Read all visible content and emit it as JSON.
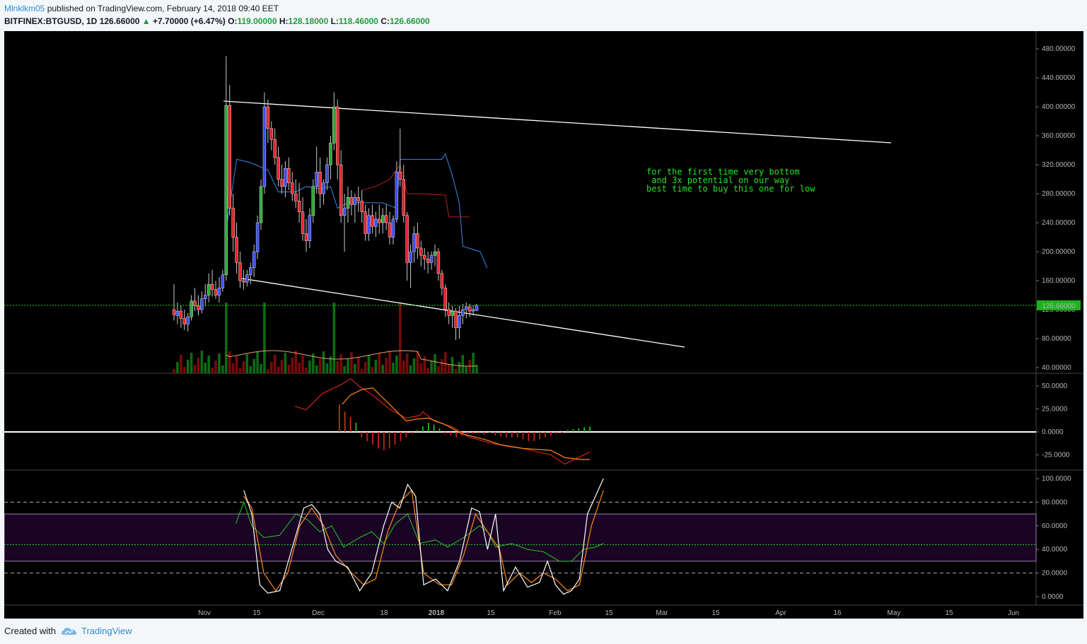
{
  "header": {
    "author": "Mlnklkm05",
    "published_text": "published on TradingView.com, February 14, 2018 09:40 EET"
  },
  "symbol_line": {
    "symbol": "BITFINEX:BTGUSD, 1D",
    "last": "126.66000",
    "change": "+7.70000 (+6.47%)",
    "o_label": "O:",
    "o_value": "119.00000",
    "h_label": "H:",
    "h_value": "128.18000",
    "l_label": "L:",
    "l_value": "118.46000",
    "c_label": "C:",
    "c_value": "126.66000"
  },
  "footer": {
    "created_with": "Created with",
    "brand": "TradingView"
  },
  "colors": {
    "bull_candle": "#3d4cf0",
    "bear_candle": "#e8242c",
    "green_candle": "#2fa83a",
    "vol_up": "#0d6b12",
    "vol_down": "#7a0a0a",
    "kijun": "#3a86e8",
    "tenkan": "#b32020",
    "price_line": "#21d321",
    "note": "#24e324",
    "stoch_k": "#ffffff",
    "stoch_d": "#ff8c1a",
    "rsi": "#28c828",
    "macd": "#3a86e8",
    "signal": "#ff8c1a"
  },
  "chart_data": {
    "type": "candlestick",
    "title": "BITFINEX:BTGUSD, 1D",
    "x_ticks": [
      "Nov",
      "15",
      "Dec",
      "18",
      "2018",
      "15",
      "Feb",
      "15",
      "Mar",
      "15",
      "Apr",
      "16",
      "May",
      "15",
      "Jun"
    ],
    "price_axis": {
      "ticks": [
        "480.00000",
        "440.00000",
        "400.00000",
        "360.00000",
        "320.00000",
        "280.00000",
        "240.00000",
        "200.00000",
        "160.00000",
        "120.00000",
        "80.00000",
        "40.00000"
      ],
      "ylim": [
        40,
        490
      ]
    },
    "last_price_label": "126.66000",
    "annotation": [
      "for the first time very bottom",
      " and 3x potential on our way",
      "best time to buy this one for low"
    ],
    "candles": [
      [
        120,
        155,
        105,
        113
      ],
      [
        112,
        130,
        100,
        118
      ],
      [
        118,
        126,
        95,
        108
      ],
      [
        108,
        120,
        92,
        100
      ],
      [
        100,
        115,
        90,
        110
      ],
      [
        110,
        140,
        105,
        132
      ],
      [
        132,
        150,
        118,
        125
      ],
      [
        125,
        140,
        112,
        120
      ],
      [
        120,
        145,
        115,
        135
      ],
      [
        135,
        155,
        125,
        140
      ],
      [
        140,
        170,
        130,
        155
      ],
      [
        155,
        175,
        138,
        148
      ],
      [
        148,
        160,
        135,
        140
      ],
      [
        140,
        165,
        130,
        150
      ],
      [
        150,
        175,
        145,
        168
      ],
      [
        168,
        470,
        160,
        402
      ],
      [
        402,
        430,
        250,
        260
      ],
      [
        260,
        280,
        200,
        220
      ],
      [
        220,
        240,
        170,
        185
      ],
      [
        185,
        200,
        150,
        160
      ],
      [
        160,
        175,
        148,
        158
      ],
      [
        158,
        175,
        152,
        168
      ],
      [
        168,
        185,
        155,
        178
      ],
      [
        178,
        210,
        165,
        200
      ],
      [
        200,
        250,
        190,
        240
      ],
      [
        240,
        300,
        230,
        290
      ],
      [
        290,
        420,
        280,
        400
      ],
      [
        400,
        410,
        350,
        370
      ],
      [
        370,
        380,
        340,
        355
      ],
      [
        355,
        370,
        320,
        330
      ],
      [
        330,
        345,
        290,
        300
      ],
      [
        300,
        320,
        280,
        290
      ],
      [
        290,
        325,
        275,
        315
      ],
      [
        315,
        330,
        285,
        295
      ],
      [
        295,
        310,
        270,
        280
      ],
      [
        280,
        300,
        260,
        270
      ],
      [
        270,
        295,
        240,
        255
      ],
      [
        255,
        275,
        215,
        225
      ],
      [
        225,
        245,
        200,
        215
      ],
      [
        215,
        260,
        205,
        250
      ],
      [
        250,
        300,
        240,
        290
      ],
      [
        290,
        345,
        280,
        310
      ],
      [
        310,
        330,
        260,
        280
      ],
      [
        280,
        300,
        265,
        295
      ],
      [
        295,
        330,
        285,
        320
      ],
      [
        320,
        360,
        300,
        350
      ],
      [
        350,
        420,
        340,
        400
      ],
      [
        400,
        410,
        300,
        320
      ],
      [
        320,
        340,
        240,
        250
      ],
      [
        250,
        280,
        200,
        260
      ],
      [
        260,
        290,
        240,
        275
      ],
      [
        275,
        285,
        250,
        265
      ],
      [
        265,
        280,
        240,
        275
      ],
      [
        275,
        290,
        255,
        270
      ],
      [
        270,
        285,
        240,
        255
      ],
      [
        255,
        265,
        215,
        225
      ],
      [
        225,
        260,
        215,
        250
      ],
      [
        250,
        265,
        225,
        235
      ],
      [
        235,
        255,
        220,
        245
      ],
      [
        245,
        265,
        225,
        240
      ],
      [
        240,
        260,
        225,
        250
      ],
      [
        250,
        265,
        230,
        240
      ],
      [
        240,
        255,
        210,
        220
      ],
      [
        220,
        250,
        210,
        245
      ],
      [
        245,
        325,
        240,
        310
      ],
      [
        310,
        370,
        290,
        300
      ],
      [
        300,
        320,
        240,
        250
      ],
      [
        250,
        255,
        160,
        185
      ],
      [
        185,
        210,
        150,
        200
      ],
      [
        200,
        235,
        185,
        225
      ],
      [
        225,
        240,
        190,
        205
      ],
      [
        205,
        215,
        180,
        195
      ],
      [
        195,
        205,
        175,
        190
      ],
      [
        190,
        200,
        170,
        185
      ],
      [
        185,
        200,
        175,
        195
      ],
      [
        195,
        210,
        180,
        200
      ],
      [
        200,
        205,
        160,
        170
      ],
      [
        170,
        175,
        140,
        150
      ],
      [
        150,
        155,
        110,
        120
      ],
      [
        120,
        130,
        100,
        112
      ],
      [
        112,
        125,
        95,
        118
      ],
      [
        118,
        122,
        78,
        95
      ],
      [
        95,
        125,
        80,
        112
      ],
      [
        112,
        128,
        100,
        120
      ],
      [
        120,
        130,
        108,
        124
      ],
      [
        124,
        128,
        110,
        118
      ],
      [
        118,
        126,
        112,
        120
      ],
      [
        119,
        128,
        118,
        126
      ]
    ],
    "volume_ma_note": "volume bars with moving average",
    "macd_axis": {
      "ticks": [
        "50.0000",
        "25.0000",
        "0.0000",
        "-25.0000"
      ],
      "ylim": [
        -35,
        60
      ]
    },
    "macd": {
      "macd_line": [
        [
          18,
          28
        ],
        [
          22,
          24
        ],
        [
          28,
          42
        ],
        [
          35,
          52
        ],
        [
          38,
          58
        ],
        [
          41,
          50
        ],
        [
          46,
          40
        ],
        [
          52,
          25
        ],
        [
          58,
          15
        ],
        [
          63,
          18
        ],
        [
          64,
          22
        ],
        [
          68,
          12
        ],
        [
          75,
          5
        ],
        [
          80,
          -5
        ],
        [
          88,
          -12
        ],
        [
          95,
          -16
        ],
        [
          100,
          -18
        ],
        [
          110,
          -25
        ],
        [
          115,
          -35
        ],
        [
          121,
          -26
        ],
        [
          124,
          -22
        ]
      ],
      "signal_line": [
        [
          35,
          30
        ],
        [
          38,
          40
        ],
        [
          42,
          46
        ],
        [
          46,
          48
        ],
        [
          52,
          30
        ],
        [
          58,
          12
        ],
        [
          62,
          14
        ],
        [
          66,
          15
        ],
        [
          72,
          8
        ],
        [
          78,
          -2
        ],
        [
          86,
          -8
        ],
        [
          92,
          -14
        ],
        [
          100,
          -18
        ],
        [
          110,
          -20
        ],
        [
          115,
          -28
        ],
        [
          121,
          -30
        ],
        [
          124,
          -30
        ]
      ]
    },
    "stoch_axis": {
      "ticks": [
        "100.0000",
        "80.0000",
        "60.0000",
        "40.0000",
        "20.0000",
        "0.0000"
      ],
      "ylim": [
        -5,
        105
      ]
    },
    "stochastic": {
      "k": [
        [
          15,
          90
        ],
        [
          17,
          70
        ],
        [
          19,
          10
        ],
        [
          21,
          3
        ],
        [
          24,
          5
        ],
        [
          27,
          40
        ],
        [
          30,
          75
        ],
        [
          32,
          78
        ],
        [
          34,
          70
        ],
        [
          36,
          40
        ],
        [
          38,
          30
        ],
        [
          41,
          25
        ],
        [
          44,
          5
        ],
        [
          47,
          20
        ],
        [
          50,
          60
        ],
        [
          52,
          80
        ],
        [
          54,
          75
        ],
        [
          56,
          95
        ],
        [
          58,
          85
        ],
        [
          60,
          10
        ],
        [
          63,
          15
        ],
        [
          66,
          5
        ],
        [
          69,
          30
        ],
        [
          72,
          75
        ],
        [
          74,
          72
        ],
        [
          76,
          40
        ],
        [
          78,
          70
        ],
        [
          80,
          5
        ],
        [
          83,
          25
        ],
        [
          86,
          8
        ],
        [
          89,
          12
        ],
        [
          91,
          30
        ],
        [
          93,
          10
        ],
        [
          95,
          2
        ],
        [
          97,
          5
        ],
        [
          99,
          15
        ],
        [
          101,
          70
        ],
        [
          103,
          85
        ],
        [
          105,
          100
        ]
      ],
      "d": [
        [
          15,
          85
        ],
        [
          17,
          75
        ],
        [
          20,
          20
        ],
        [
          23,
          5
        ],
        [
          26,
          20
        ],
        [
          29,
          60
        ],
        [
          32,
          75
        ],
        [
          35,
          60
        ],
        [
          38,
          35
        ],
        [
          42,
          20
        ],
        [
          45,
          10
        ],
        [
          48,
          15
        ],
        [
          51,
          55
        ],
        [
          54,
          80
        ],
        [
          57,
          90
        ],
        [
          60,
          20
        ],
        [
          64,
          10
        ],
        [
          67,
          10
        ],
        [
          70,
          35
        ],
        [
          73,
          70
        ],
        [
          76,
          55
        ],
        [
          79,
          40
        ],
        [
          81,
          10
        ],
        [
          84,
          20
        ],
        [
          87,
          12
        ],
        [
          90,
          20
        ],
        [
          93,
          15
        ],
        [
          96,
          5
        ],
        [
          99,
          10
        ],
        [
          102,
          60
        ],
        [
          105,
          90
        ]
      ],
      "rsi": [
        [
          13,
          62
        ],
        [
          15,
          80
        ],
        [
          17,
          60
        ],
        [
          20,
          50
        ],
        [
          24,
          52
        ],
        [
          28,
          70
        ],
        [
          31,
          65
        ],
        [
          34,
          55
        ],
        [
          37,
          60
        ],
        [
          40,
          42
        ],
        [
          44,
          50
        ],
        [
          47,
          55
        ],
        [
          50,
          45
        ],
        [
          53,
          62
        ],
        [
          56,
          70
        ],
        [
          59,
          45
        ],
        [
          63,
          48
        ],
        [
          66,
          42
        ],
        [
          70,
          50
        ],
        [
          74,
          60
        ],
        [
          76,
          55
        ],
        [
          78,
          42
        ],
        [
          82,
          45
        ],
        [
          86,
          40
        ],
        [
          90,
          38
        ],
        [
          94,
          30
        ],
        [
          97,
          30
        ],
        [
          100,
          40
        ],
        [
          103,
          42
        ],
        [
          105,
          45
        ]
      ],
      "bands": {
        "upper": 80,
        "lower": 20,
        "zone_top": 70,
        "zone_bottom": 30
      }
    }
  }
}
